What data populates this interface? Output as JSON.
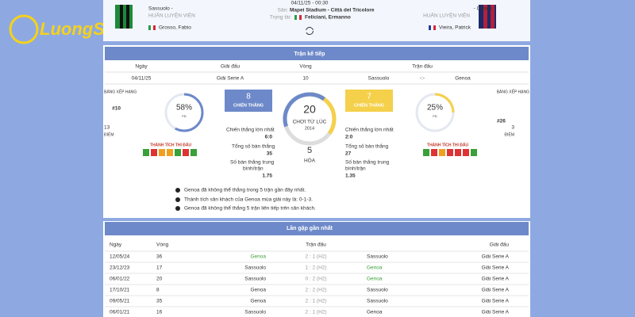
{
  "logo": "LuongSon",
  "header": {
    "home_name": "Sassuolo -",
    "away_name": "- Genoa",
    "coach_label": "HUẤN LUYỆN VIÊN",
    "home_coach": "Grosso, Fabio",
    "away_coach": "Vieira, Patrick",
    "datetime": "04/11/25 - 00:30",
    "stadium_label": "Sân:",
    "stadium": "Mapei Stadium - Città del Tricolore",
    "referee_label": "Trọng tài:",
    "referee": "Feliciani, Ermanno"
  },
  "next": {
    "title": "Trận kế tiếp",
    "columns": [
      "Ngày",
      "Giải đấu",
      "Vòng",
      "Trận đấu"
    ],
    "row": [
      "04/11/25",
      "Giải Serie A",
      "10",
      "Sassuolo",
      "-:-",
      "Genoa"
    ]
  },
  "stats": {
    "rank_label": "BẢNG XẾP HẠNG",
    "points_label": "ĐIỂM",
    "form_label": "THÀNH TÍCH THI ĐẤU",
    "pct_sub": "FD",
    "home": {
      "rank": "#10",
      "points": "13",
      "pct": "58%",
      "wins": "8",
      "biggest": "6:0",
      "goals": "35",
      "avg": "1.75"
    },
    "away": {
      "rank": "#26",
      "points": "3",
      "pct": "25%",
      "wins": "7",
      "biggest": "2:0",
      "goals": "27",
      "avg": "1.35"
    },
    "wins_label": "CHIẾN THẮNG",
    "played": "20",
    "played_label": "CHƠI TỪ LÚC",
    "since": "2014",
    "draws": "5",
    "draws_label": "HÒA",
    "biggest_label": "Chiến thắng lớn nhất",
    "goals_label": "Tổng số bàn thắng",
    "avg_label_1": "Số bàn thắng trung",
    "avg_label_2": "bình/trận"
  },
  "notes": [
    "Genoa đã không thể thắng trong 5 trận gần đây nhất.",
    "Thành tích sân khách của Genoa mùa giải này là: 0-1-3.",
    "Genoa đã không thể thắng 5 trận liên tiếp trên sân khách."
  ],
  "h2h": {
    "title": "Lần gặp gần nhất",
    "columns": [
      "Ngày",
      "Vòng",
      "Trận đấu",
      "Giải đấu"
    ],
    "rows": [
      [
        "12/05/24",
        "36",
        "Genoa",
        "2 : 1 (H2)",
        "Sassuolo",
        "Giải Serie A"
      ],
      [
        "23/12/23",
        "17",
        "Sassuolo",
        "1 : 2 (H2)",
        "Genoa",
        "Giải Serie A"
      ],
      [
        "06/01/22",
        "20",
        "Sassuolo",
        "0 : 2 (H2)",
        "Genoa",
        "Giải Serie A"
      ],
      [
        "17/10/21",
        "8",
        "Genoa",
        "2 : 2 (H2)",
        "Sassuolo",
        "Giải Serie A"
      ],
      [
        "09/05/21",
        "35",
        "Genoa",
        "2 : 1 (H2)",
        "Sassuolo",
        "Giải Serie A"
      ],
      [
        "06/01/21",
        "16",
        "Sassuolo",
        "2 : 1 (H2)",
        "Genoa",
        "Giải Serie A"
      ]
    ]
  }
}
